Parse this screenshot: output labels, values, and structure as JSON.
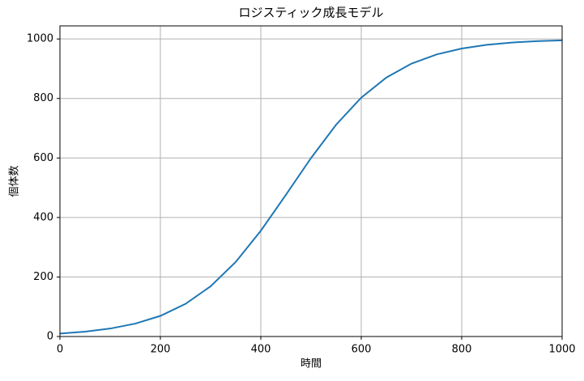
{
  "chart_data": {
    "type": "line",
    "title": "ロジスティック成長モデル",
    "xlabel": "時間",
    "ylabel": "個体数",
    "x": [
      0,
      50,
      100,
      150,
      200,
      250,
      300,
      350,
      400,
      450,
      500,
      550,
      600,
      650,
      700,
      750,
      800,
      850,
      900,
      950,
      1000
    ],
    "series": [
      {
        "name": "個体数",
        "color": "#1f77b4",
        "values": [
          10,
          16.4,
          26.7,
          43.3,
          69.3,
          109.6,
          168.7,
          250.6,
          355.5,
          476.2,
          599.9,
          712.0,
          802.9,
          870.5,
          917.2,
          948.1,
          967.9,
          980.3,
          988.0,
          992.6,
          995.5
        ]
      }
    ],
    "xlim": [
      0,
      1000
    ],
    "xticks": [
      0,
      200,
      400,
      600,
      800,
      1000
    ],
    "ylim": [
      0,
      1044
    ],
    "yticks": [
      0,
      200,
      400,
      600,
      800,
      1000
    ],
    "grid": true
  }
}
